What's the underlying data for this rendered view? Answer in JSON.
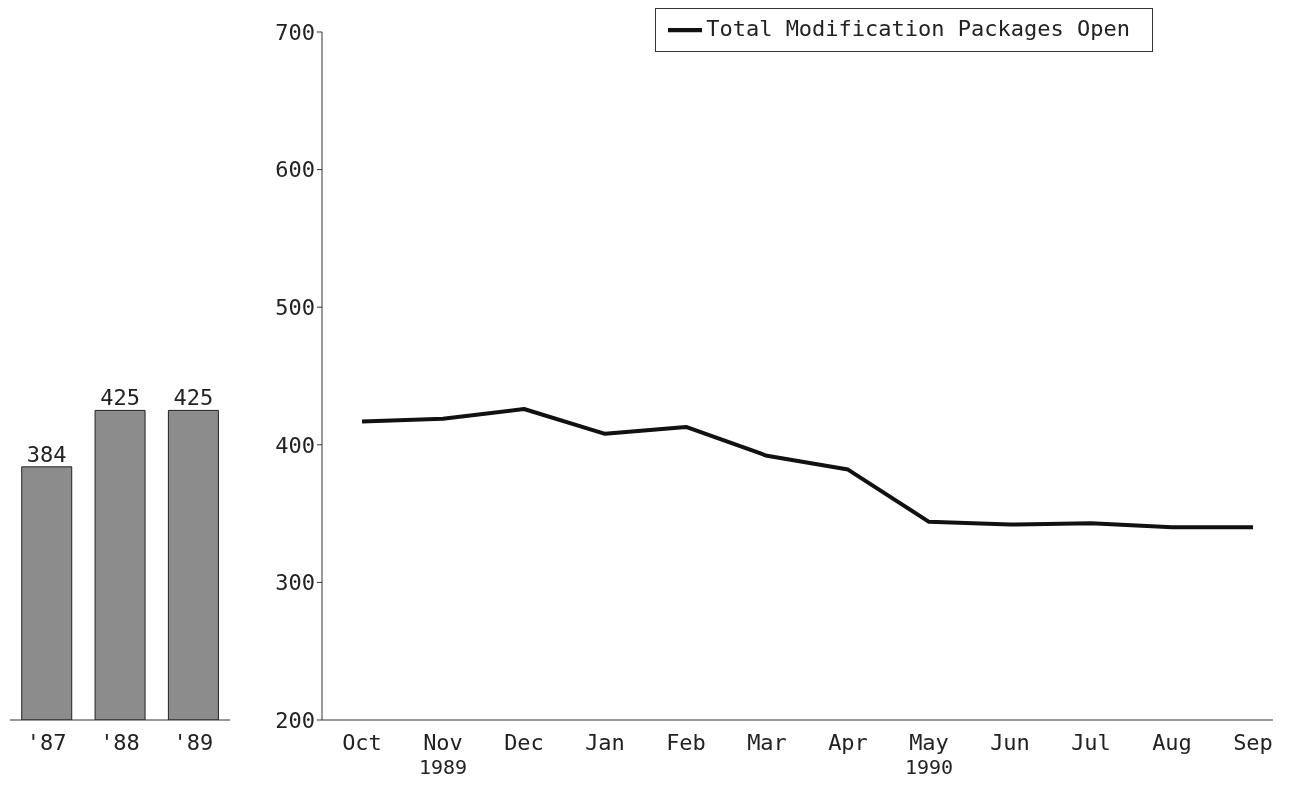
{
  "chart_data": [
    {
      "type": "bar",
      "categories": [
        "'87",
        "'88",
        "'89"
      ],
      "values": [
        384,
        425,
        425
      ],
      "color": "#8c8c8c",
      "ylim": [
        200,
        700
      ],
      "tick_labels": "x",
      "data_labels": true
    },
    {
      "type": "line",
      "categories": [
        "Oct",
        "Nov\n1989",
        "Dec",
        "Jan",
        "Feb",
        "Mar",
        "Apr",
        "May\n1990",
        "Jun",
        "Jul",
        "Aug",
        "Sep"
      ],
      "series": [
        {
          "name": "Total Modification Packages Open",
          "color": "#111111",
          "values": [
            417,
            419,
            426,
            408,
            413,
            392,
            382,
            344,
            342,
            343,
            340,
            340
          ]
        }
      ],
      "ylim": [
        200,
        700
      ],
      "yticks": [
        200,
        300,
        400,
        500,
        600,
        700
      ],
      "legend": "top right",
      "marker": "none",
      "line_style": "solid"
    }
  ]
}
